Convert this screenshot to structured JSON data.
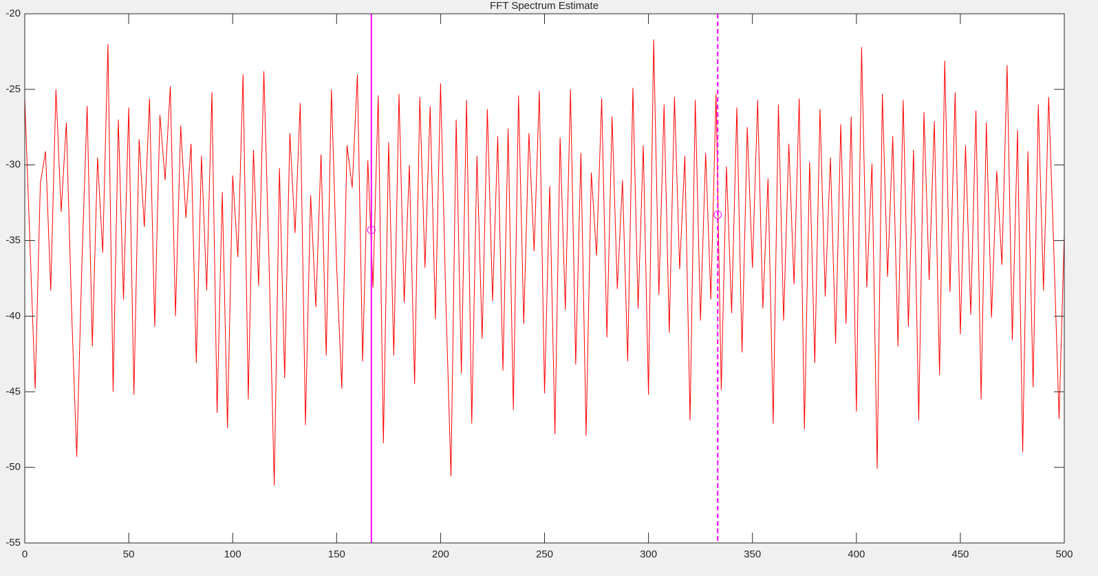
{
  "chart_data": {
    "type": "line",
    "title": "FFT Spectrum Estimate",
    "x": [
      0,
      2.5,
      5,
      7.5,
      10,
      12.5,
      15,
      17.5,
      20,
      22.5,
      25,
      27.5,
      30,
      32.5,
      35,
      37.5,
      40,
      42.5,
      45,
      47.5,
      50,
      52.5,
      55,
      57.5,
      60,
      62.5,
      65,
      67.5,
      70,
      72.5,
      75,
      77.5,
      80,
      82.5,
      85,
      87.5,
      90,
      92.5,
      95,
      97.5,
      100,
      102.5,
      105,
      107.5,
      110,
      112.5,
      115,
      117.5,
      120,
      122.5,
      125,
      127.5,
      130,
      132.5,
      135,
      137.5,
      140,
      142.5,
      145,
      147.5,
      150,
      152.5,
      155,
      157.5,
      160,
      162.5,
      165,
      167.5,
      170,
      172.5,
      175,
      177.5,
      180,
      182.5,
      185,
      187.5,
      190,
      192.5,
      195,
      197.5,
      200,
      202.5,
      205,
      207.5,
      210,
      212.5,
      215,
      217.5,
      220,
      222.5,
      225,
      227.5,
      230,
      232.5,
      235,
      237.5,
      240,
      242.5,
      245,
      247.5,
      250,
      252.5,
      255,
      257.5,
      260,
      262.5,
      265,
      267.5,
      270,
      272.5,
      275,
      277.5,
      280,
      282.5,
      285,
      287.5,
      290,
      292.5,
      295,
      297.5,
      300,
      302.5,
      305,
      307.5,
      310,
      312.5,
      315,
      317.5,
      320,
      322.5,
      325,
      327.5,
      330,
      332.5,
      335,
      337.5,
      340,
      342.5,
      345,
      347.5,
      350,
      352.5,
      355,
      357.5,
      360,
      362.5,
      365,
      367.5,
      370,
      372.5,
      375,
      377.5,
      380,
      382.5,
      385,
      387.5,
      390,
      392.5,
      395,
      397.5,
      400,
      402.5,
      405,
      407.5,
      410,
      412.5,
      415,
      417.5,
      420,
      422.5,
      425,
      427.5,
      430,
      432.5,
      435,
      437.5,
      440,
      442.5,
      445,
      447.5,
      450,
      452.5,
      455,
      457.5,
      460,
      462.5,
      465,
      467.5,
      470,
      472.5,
      475,
      477.5,
      480,
      482.5,
      485,
      487.5,
      490,
      492.5,
      495,
      497.5,
      500
    ],
    "series": [
      {
        "color": "#ff0000",
        "values": [
          -25.6,
          -35.2,
          -44.8,
          -31.2,
          -29.1,
          -38.3,
          -25.0,
          -33.1,
          -27.2,
          -39.5,
          -49.3,
          -36.4,
          -26.1,
          -42.0,
          -29.5,
          -35.8,
          -22.0,
          -45.0,
          -27.0,
          -38.9,
          -26.2,
          -45.2,
          -28.3,
          -34.1,
          -25.6,
          -40.7,
          -26.7,
          -31.0,
          -24.8,
          -40.0,
          -27.4,
          -33.5,
          -28.6,
          -43.1,
          -29.4,
          -38.3,
          -25.2,
          -46.4,
          -31.8,
          -47.4,
          -30.7,
          -36.1,
          -24.0,
          -45.5,
          -29.0,
          -38.0,
          -23.8,
          -36.5,
          -51.2,
          -30.2,
          -44.1,
          -27.9,
          -34.5,
          -25.9,
          -47.2,
          -32.0,
          -39.4,
          -29.3,
          -42.6,
          -25.0,
          -36.7,
          -44.8,
          -28.7,
          -31.5,
          -24.0,
          -43.0,
          -29.7,
          -38.1,
          -25.4,
          -48.4,
          -28.5,
          -42.6,
          -25.3,
          -39.1,
          -30.0,
          -44.5,
          -25.5,
          -36.8,
          -26.1,
          -40.2,
          -24.6,
          -38.8,
          -50.6,
          -27.0,
          -43.8,
          -25.7,
          -47.1,
          -29.4,
          -41.5,
          -26.3,
          -39.0,
          -28.1,
          -43.6,
          -27.6,
          -46.2,
          -25.4,
          -40.5,
          -27.9,
          -35.7,
          -25.1,
          -45.1,
          -31.4,
          -47.8,
          -28.2,
          -39.6,
          -25.0,
          -43.2,
          -29.2,
          -47.9,
          -30.5,
          -36.0,
          -25.6,
          -41.4,
          -26.8,
          -38.2,
          -31.0,
          -43.0,
          -24.9,
          -39.5,
          -28.7,
          -45.2,
          -21.7,
          -38.6,
          -26.0,
          -41.1,
          -25.5,
          -36.9,
          -29.4,
          -46.9,
          -25.7,
          -40.3,
          -29.2,
          -38.9,
          -25.3,
          -44.9,
          -30.1,
          -39.8,
          -26.2,
          -42.4,
          -27.5,
          -36.8,
          -25.7,
          -39.5,
          -30.9,
          -47.1,
          -26.0,
          -40.3,
          -28.6,
          -37.9,
          -25.6,
          -47.5,
          -29.8,
          -43.1,
          -26.3,
          -38.7,
          -29.5,
          -41.8,
          -27.3,
          -40.5,
          -26.8,
          -46.3,
          -22.2,
          -38.1,
          -29.9,
          -50.1,
          -25.3,
          -37.4,
          -28.1,
          -42.0,
          -25.7,
          -40.7,
          -29.0,
          -46.9,
          -26.5,
          -37.6,
          -27.1,
          -43.9,
          -23.1,
          -38.4,
          -25.2,
          -41.2,
          -28.7,
          -39.9,
          -26.4,
          -45.5,
          -27.2,
          -40.1,
          -30.4,
          -36.6,
          -23.4,
          -41.6,
          -27.7,
          -49.0,
          -29.1,
          -44.7,
          -26.0,
          -38.3,
          -25.5,
          -35.8,
          -46.8,
          -34.6
        ]
      }
    ],
    "cursors": [
      {
        "x": 166.7,
        "y": -34.3,
        "style": "solid",
        "color": "#ff00ff"
      },
      {
        "x": 333.3,
        "y": -33.3,
        "style": "dashed",
        "color": "#ff00ff"
      }
    ],
    "xlim": [
      0,
      500
    ],
    "xticks": [
      0,
      50,
      100,
      150,
      200,
      250,
      300,
      350,
      400,
      450,
      500
    ],
    "ylim": [
      -55,
      -20
    ],
    "yticks": [
      -55,
      -50,
      -45,
      -40,
      -35,
      -30,
      -25,
      -20
    ]
  }
}
